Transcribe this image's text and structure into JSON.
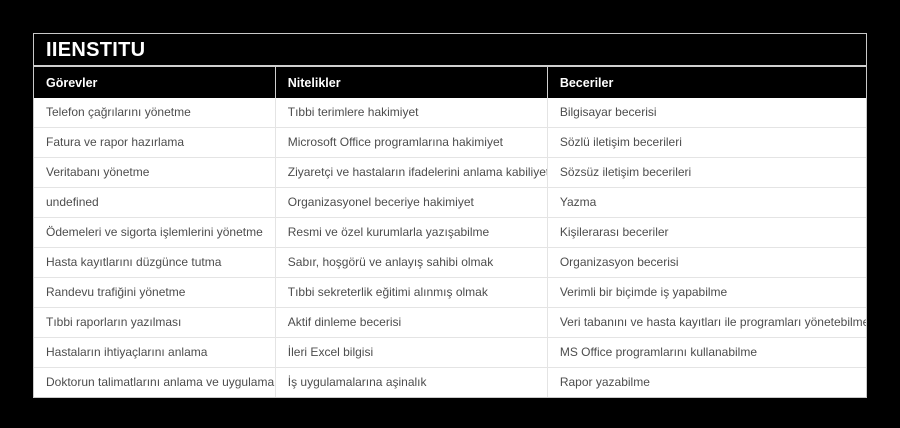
{
  "title": "IIENSTITU",
  "table": {
    "columns": [
      "Görevler",
      "Nitelikler",
      "Beceriler"
    ],
    "rows": [
      [
        "Telefon çağrılarını yönetme",
        "Tıbbi terimlere hakimiyet",
        "Bilgisayar becerisi"
      ],
      [
        "Fatura ve rapor hazırlama",
        "Microsoft Office programlarına hakimiyet",
        "Sözlü iletişim becerileri"
      ],
      [
        "Veritabanı yönetme",
        "Ziyaretçi ve hastaların ifadelerini anlama kabiliyeti",
        "Sözsüz iletişim becerileri"
      ],
      [
        "undefined",
        "Organizasyonel beceriye hakimiyet",
        "Yazma"
      ],
      [
        "Ödemeleri ve sigorta işlemlerini yönetme",
        "Resmi ve özel kurumlarla yazışabilme",
        "Kişilerarası beceriler"
      ],
      [
        "Hasta kayıtlarını düzgünce tutma",
        "Sabır, hoşgörü ve anlayış sahibi olmak",
        "Organizasyon becerisi"
      ],
      [
        "Randevu trafiğini yönetme",
        "Tıbbi sekreterlik eğitimi alınmış olmak",
        "Verimli bir biçimde iş yapabilme"
      ],
      [
        "Tıbbi raporların yazılması",
        "Aktif dinleme becerisi",
        "Veri tabanını ve hasta kayıtları ile programları yönetebilme"
      ],
      [
        "Hastaların ihtiyaçlarını anlama",
        "İleri Excel bilgisi",
        "MS Office programlarını kullanabilme"
      ],
      [
        "Doktorun talimatlarını anlama ve uygulama",
        "İş uygulamalarına aşinalık",
        "Rapor yazabilme"
      ]
    ]
  },
  "colors": {
    "page_background": "#000000",
    "card_background": "#ffffff",
    "header_background": "#000000",
    "header_text": "#ffffff",
    "body_text": "#4d4d4d",
    "border": "#c9c9c9",
    "row_divider": "#e4e4e4"
  }
}
